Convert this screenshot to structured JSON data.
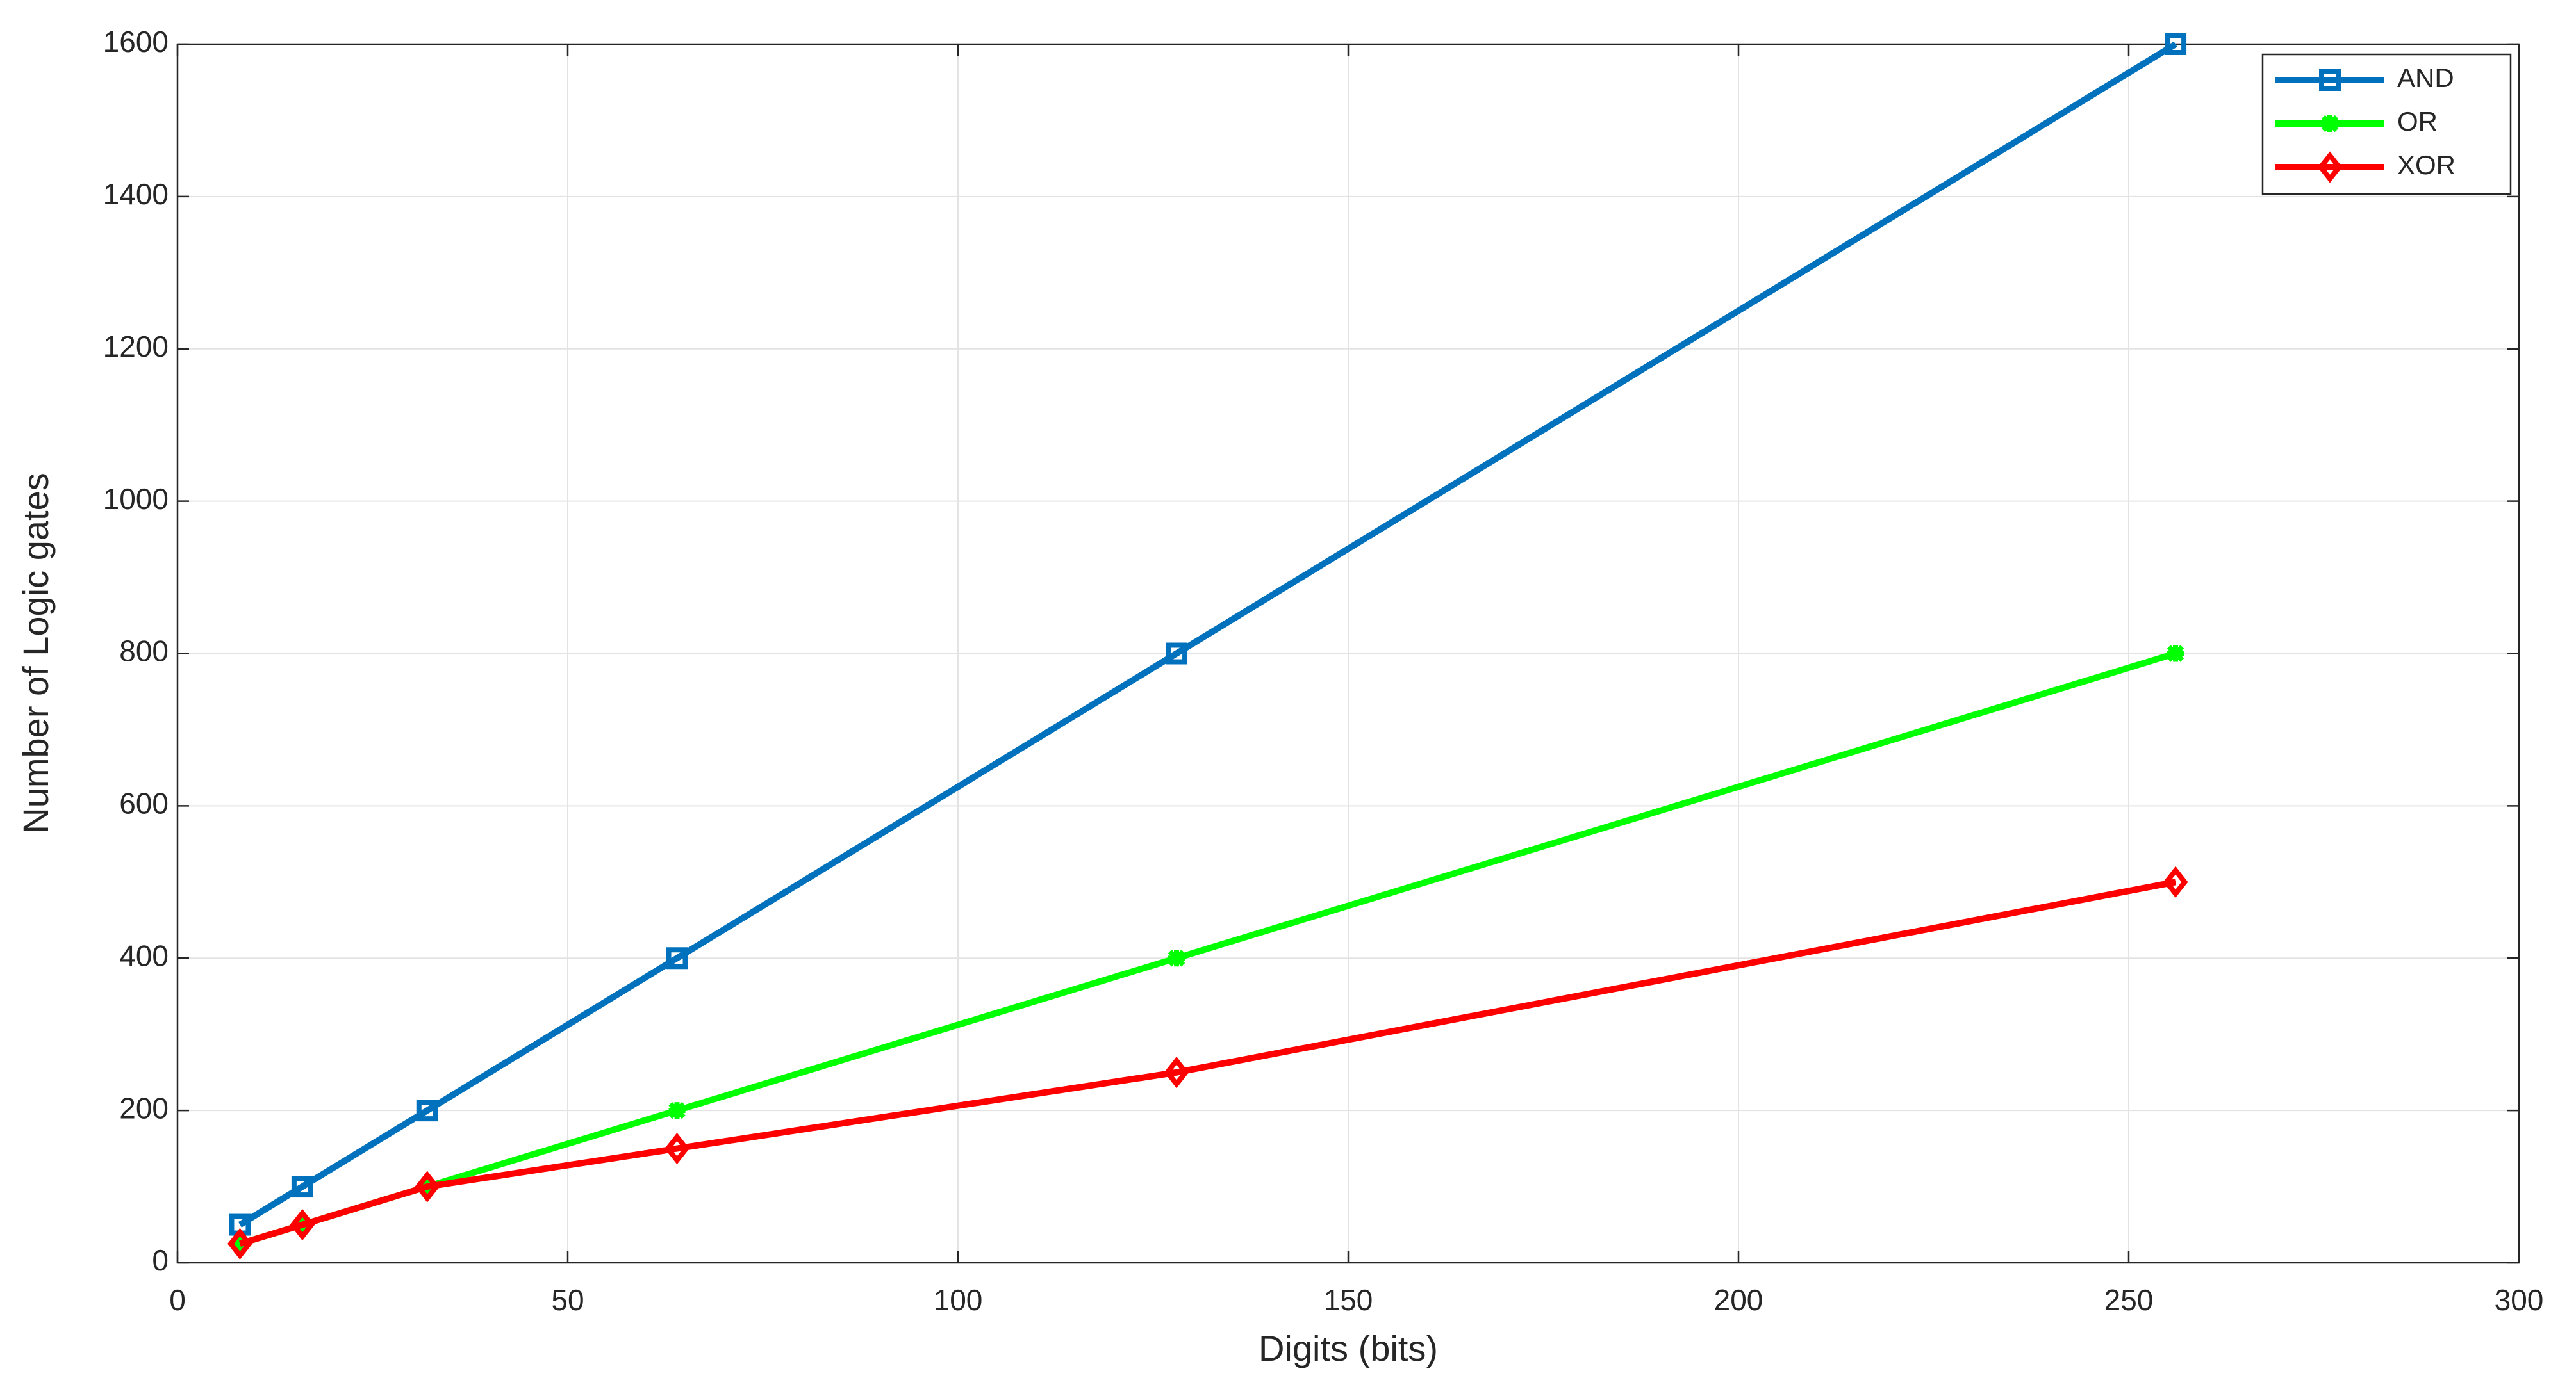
{
  "chart_data": {
    "type": "line",
    "x_label": "Digits (bits)",
    "y_label": "Number of Logic gates",
    "x": [
      8,
      16,
      32,
      64,
      128,
      256
    ],
    "series": [
      {
        "name": "AND",
        "color": "#0072bd",
        "marker": "square",
        "values": [
          50,
          100,
          200,
          400,
          800,
          1600
        ]
      },
      {
        "name": "OR",
        "color": "#00ff00",
        "marker": "asterisk",
        "values": [
          25,
          50,
          100,
          200,
          400,
          800
        ]
      },
      {
        "name": "XOR",
        "color": "#ff0000",
        "marker": "diamond",
        "values": [
          25,
          50,
          100,
          150,
          250,
          500
        ]
      }
    ],
    "xlim": [
      0,
      300
    ],
    "xticks": [
      0,
      50,
      100,
      150,
      200,
      250,
      300
    ],
    "ylim": [
      0,
      1600
    ],
    "yticks": [
      0,
      200,
      400,
      600,
      800,
      1000,
      1200,
      1400,
      1600
    ],
    "grid": true,
    "legend": "upper right"
  }
}
